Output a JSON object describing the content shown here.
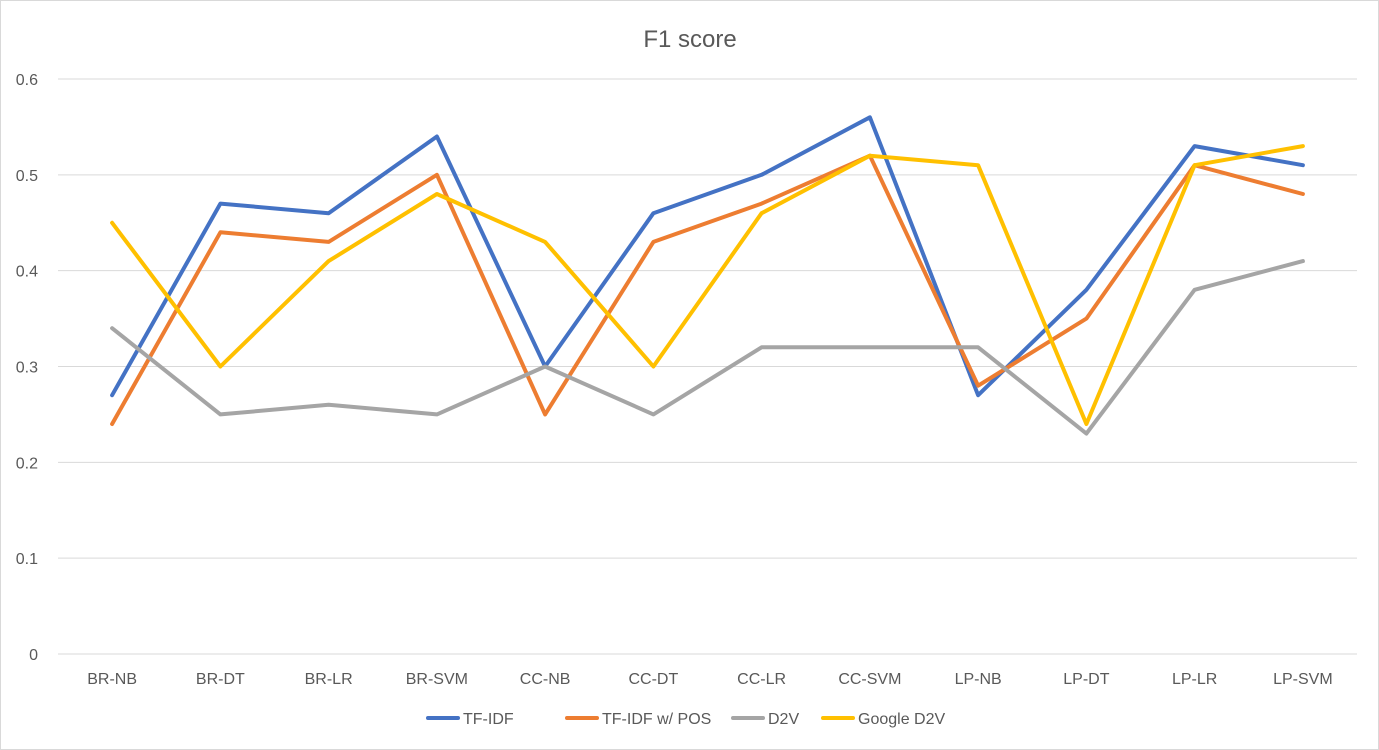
{
  "chart_data": {
    "type": "line",
    "title": "F1 score",
    "xlabel": "",
    "ylabel": "",
    "categories": [
      "BR-NB",
      "BR-DT",
      "BR-LR",
      "BR-SVM",
      "CC-NB",
      "CC-DT",
      "CC-LR",
      "CC-SVM",
      "LP-NB",
      "LP-DT",
      "LP-LR",
      "LP-SVM"
    ],
    "ylim": [
      0,
      0.6
    ],
    "yticks": [
      "0",
      "0.1",
      "0.2",
      "0.3",
      "0.4",
      "0.5",
      "0.6"
    ],
    "grid": true,
    "legend_position": "bottom",
    "series": [
      {
        "name": "TF-IDF",
        "color": "#4472c4",
        "values": [
          0.27,
          0.47,
          0.46,
          0.54,
          0.3,
          0.46,
          0.5,
          0.56,
          0.27,
          0.38,
          0.53,
          0.51
        ]
      },
      {
        "name": "TF-IDF w/ POS",
        "color": "#ed7d31",
        "values": [
          0.24,
          0.44,
          0.43,
          0.5,
          0.25,
          0.43,
          0.47,
          0.52,
          0.28,
          0.35,
          0.51,
          0.48
        ]
      },
      {
        "name": "D2V",
        "color": "#a5a5a5",
        "values": [
          0.34,
          0.25,
          0.26,
          0.25,
          0.3,
          0.25,
          0.32,
          0.32,
          0.32,
          0.23,
          0.38,
          0.41
        ]
      },
      {
        "name": "Google D2V",
        "color": "#ffc000",
        "values": [
          0.45,
          0.3,
          0.41,
          0.48,
          0.43,
          0.3,
          0.46,
          0.52,
          0.51,
          0.24,
          0.51,
          0.53
        ]
      }
    ]
  }
}
